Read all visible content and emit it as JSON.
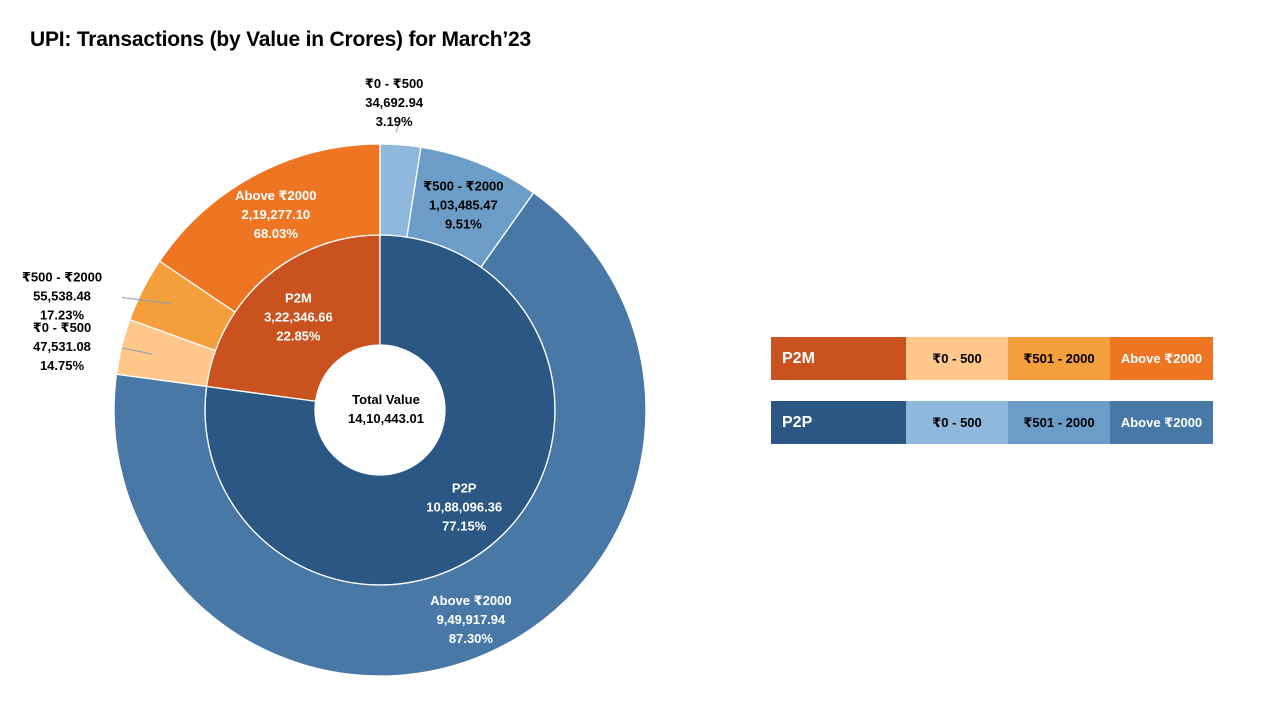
{
  "chart_data": {
    "type": "donut",
    "title": "UPI: Transactions (by Value in Crores) for March’23",
    "center_label": {
      "title": "Total Value",
      "value": "14,10,443.01"
    },
    "total": 1410443.01,
    "inner_ring": [
      {
        "name": "P2M",
        "value": 322346.66,
        "value_label": "3,22,346.66",
        "percent_label": "22.85%",
        "color": "#C9521F"
      },
      {
        "name": "P2P",
        "value": 1088096.36,
        "value_label": "10,88,096.36",
        "percent_label": "77.15%",
        "color": "#2A5783"
      }
    ],
    "outer_ring": [
      {
        "group": "P2M",
        "name": "₹0 - ₹500",
        "value": 47531.08,
        "value_label": "47,531.08",
        "percent_label": "14.75%",
        "color": "#FFC78A"
      },
      {
        "group": "P2M",
        "name": "₹500 - ₹2000",
        "value": 55538.48,
        "value_label": "55,538.48",
        "percent_label": "17.23%",
        "color": "#F59E3C"
      },
      {
        "group": "P2M",
        "name": "Above ₹2000",
        "value": 219277.1,
        "value_label": "2,19,277.10",
        "percent_label": "68.03%",
        "color": "#EE7623"
      },
      {
        "group": "P2P",
        "name": "₹0 - ₹500",
        "value": 34692.94,
        "value_label": "34,692.94",
        "percent_label": "3.19%",
        "color": "#8FB8DC"
      },
      {
        "group": "P2P",
        "name": "₹500 - ₹2000",
        "value": 103485.47,
        "value_label": "1,03,485.47",
        "percent_label": "9.51%",
        "color": "#6C9DC8"
      },
      {
        "group": "P2P",
        "name": "Above ₹2000",
        "value": 949917.94,
        "value_label": "9,49,917.94",
        "percent_label": "87.30%",
        "color": "#4878A6"
      }
    ]
  },
  "legend": [
    {
      "group": "P2M",
      "colors": [
        "#C9521F",
        "#FFC78A",
        "#F59E3C",
        "#EE7623"
      ],
      "labels": [
        "₹0 - 500",
        "₹501 - 2000",
        "Above ₹2000"
      ]
    },
    {
      "group": "P2P",
      "colors": [
        "#2A5783",
        "#8FB8DC",
        "#6C9DC8",
        "#4878A6"
      ],
      "labels": [
        "₹0 - 500",
        "₹501 - 2000",
        "Above ₹2000"
      ]
    }
  ]
}
